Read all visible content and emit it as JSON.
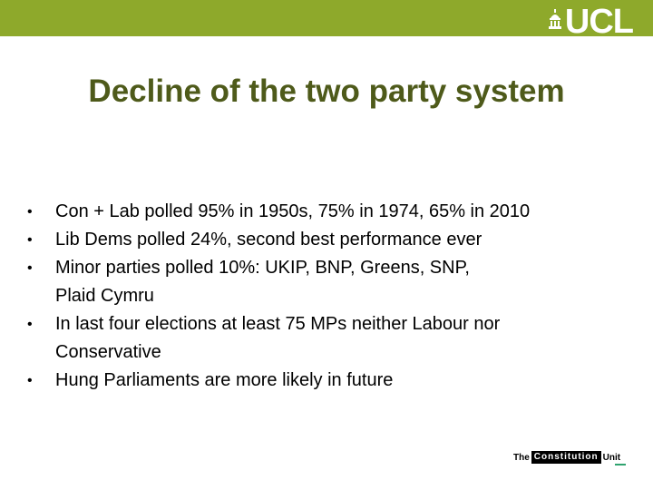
{
  "header": {
    "logo_text": "UCL",
    "brand_color": "#8ea92b"
  },
  "slide": {
    "title": "Decline of the two party system",
    "bullet_glyph": "•",
    "bullets": [
      {
        "lines": [
          "Con + Lab polled 95% in 1950s, 75% in 1974, 65% in 2010"
        ]
      },
      {
        "lines": [
          "Lib Dems polled 24%, second best performance ever"
        ]
      },
      {
        "lines": [
          "Minor parties polled 10%: UKIP, BNP, Greens, SNP,",
          "Plaid Cymru"
        ]
      },
      {
        "lines": [
          "In last four elections at least 75 MPs neither Labour nor",
          "Conservative"
        ]
      },
      {
        "lines": [
          "Hung Parliaments are more likely in future"
        ]
      }
    ]
  },
  "footer": {
    "logo_the": "The",
    "logo_name": "Constitution",
    "logo_unit": "Unit"
  }
}
